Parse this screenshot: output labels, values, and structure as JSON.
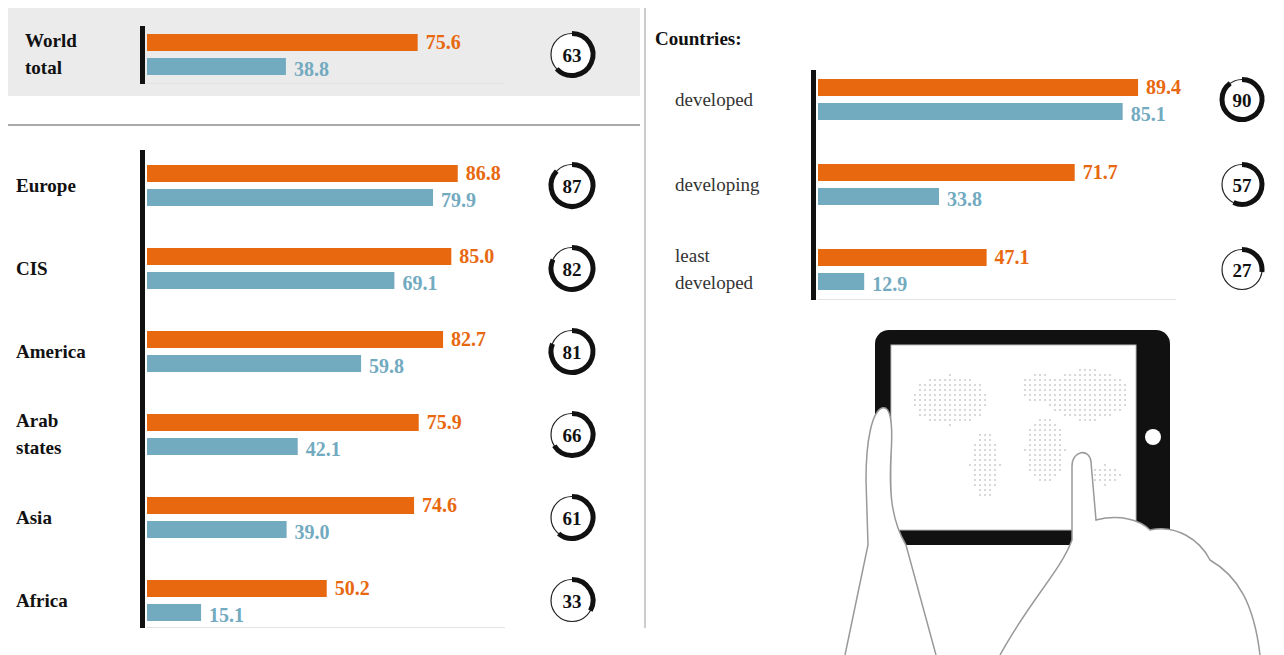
{
  "chart_data": [
    {
      "type": "bar",
      "orientation": "horizontal",
      "categories": [
        "World total"
      ],
      "series": [
        {
          "color": "#e8680f",
          "values": [
            75.6
          ]
        },
        {
          "color": "#72aabf",
          "values": [
            38.8
          ]
        }
      ],
      "rings": [
        63
      ],
      "ring_lim": [
        0,
        100
      ],
      "xlim": [
        0,
        100
      ],
      "tick_labels": false,
      "data_labels": true
    },
    {
      "type": "bar",
      "orientation": "horizontal",
      "categories": [
        "Europe",
        "CIS",
        "America",
        "Arab states",
        "Asia",
        "Africa"
      ],
      "series": [
        {
          "color": "#e8680f",
          "values": [
            86.8,
            85.0,
            82.7,
            75.9,
            74.6,
            50.2
          ],
          "value_labels": [
            "86.8",
            "85.0",
            "82.7",
            "75.9",
            "74.6",
            "50.2"
          ]
        },
        {
          "color": "#72aabf",
          "values": [
            79.9,
            69.1,
            59.8,
            42.1,
            39.0,
            15.1
          ],
          "value_labels": [
            "79.9",
            "69.1",
            "59.8",
            "42.1",
            "39.0",
            "15.1"
          ]
        }
      ],
      "rings": [
        87,
        82,
        81,
        66,
        61,
        33
      ],
      "ring_lim": [
        0,
        100
      ],
      "xlim": [
        0,
        100
      ],
      "tick_labels": false,
      "data_labels": true
    },
    {
      "type": "bar",
      "orientation": "horizontal",
      "title": "Countries:",
      "categories": [
        "developed",
        "developing",
        "least developed"
      ],
      "series": [
        {
          "color": "#e8680f",
          "values": [
            89.4,
            71.7,
            47.1
          ]
        },
        {
          "color": "#72aabf",
          "values": [
            85.1,
            33.8,
            12.9
          ]
        }
      ],
      "rings": [
        90,
        57,
        27
      ],
      "ring_lim": [
        0,
        100
      ],
      "xlim": [
        0,
        100
      ],
      "tick_labels": false,
      "data_labels": true
    }
  ]
}
